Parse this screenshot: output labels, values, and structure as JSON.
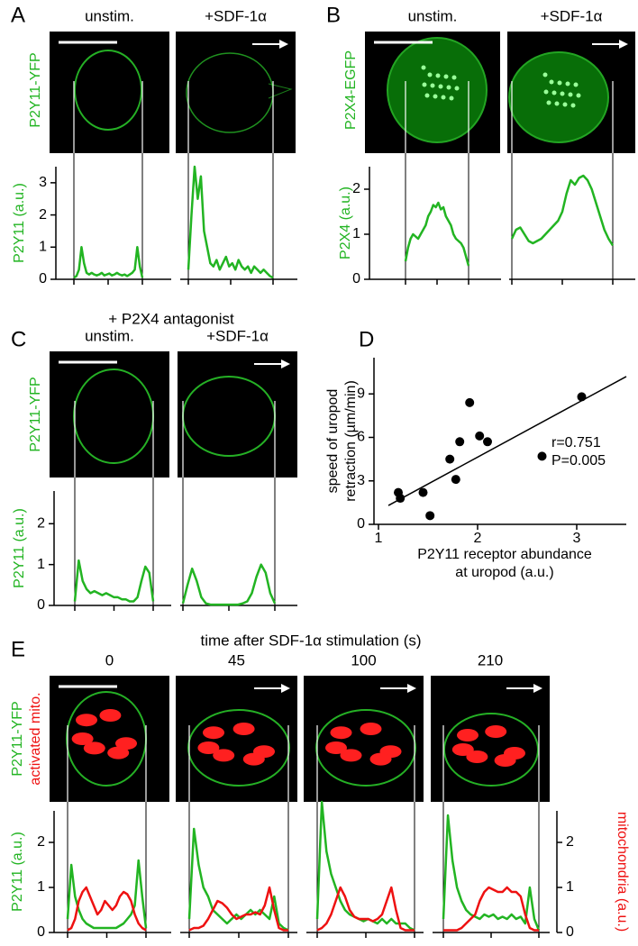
{
  "panel_letters": [
    "A",
    "B",
    "C",
    "D",
    "E"
  ],
  "headers": {
    "c": "+ P2X4 antagonist",
    "e": "time after SDF-1α stimulation (s)"
  },
  "image_labels": [
    "P2Y11-YFP",
    "P2X4-EGFP",
    "P2Y11-YFP",
    "P2Y11-YFP",
    "activated mito."
  ],
  "chart_data": [
    {
      "type": "line",
      "title": "unstim.",
      "ylabel": "P2Y11 (a.u.)",
      "ylim": [
        0,
        3.5
      ],
      "yticks": [
        0,
        1,
        2,
        3
      ],
      "series": [
        {
          "color": "#22b422",
          "values": [
            0.05,
            0.1,
            0.3,
            1.0,
            0.5,
            0.2,
            0.15,
            0.2,
            0.15,
            0.12,
            0.15,
            0.2,
            0.12,
            0.15,
            0.18,
            0.12,
            0.15,
            0.2,
            0.15,
            0.12,
            0.15,
            0.1,
            0.15,
            0.2,
            0.3,
            1.0,
            0.4,
            0.05
          ]
        }
      ]
    },
    {
      "type": "line",
      "title": "+SDF-1α",
      "ylim": [
        0,
        3.5
      ],
      "series": [
        {
          "color": "#22b422",
          "values": [
            0.3,
            2.0,
            3.5,
            2.5,
            3.2,
            1.5,
            1.0,
            0.5,
            0.4,
            0.6,
            0.3,
            0.5,
            0.7,
            0.4,
            0.5,
            0.3,
            0.6,
            0.4,
            0.3,
            0.4,
            0.2,
            0.4,
            0.3,
            0.2,
            0.3,
            0.2,
            0.1,
            0.05
          ]
        }
      ]
    },
    {
      "type": "line",
      "title": "unstim.",
      "ylabel": "P2X4 (a.u.)",
      "ylim": [
        0,
        2.5
      ],
      "yticks": [
        0,
        1,
        2
      ],
      "series": [
        {
          "color": "#22b422",
          "values": [
            0.4,
            0.7,
            0.9,
            1.0,
            0.95,
            0.9,
            1.0,
            1.1,
            1.2,
            1.4,
            1.5,
            1.65,
            1.6,
            1.7,
            1.55,
            1.6,
            1.4,
            1.3,
            1.2,
            1.0,
            0.9,
            0.85,
            0.8,
            0.7,
            0.5,
            0.3
          ]
        }
      ]
    },
    {
      "type": "line",
      "title": "+SDF-1α",
      "ylim": [
        0,
        2.5
      ],
      "series": [
        {
          "color": "#22b422",
          "values": [
            0.9,
            1.1,
            1.15,
            1.0,
            0.85,
            0.8,
            0.85,
            0.9,
            1.0,
            1.1,
            1.2,
            1.3,
            1.5,
            1.9,
            2.2,
            2.1,
            2.25,
            2.3,
            2.2,
            2.0,
            1.7,
            1.4,
            1.1,
            0.9,
            0.75
          ]
        }
      ]
    },
    {
      "type": "line",
      "title": "unstim.",
      "ylabel": "P2Y11 (a.u.)",
      "ylim": [
        0,
        2.8
      ],
      "yticks": [
        0,
        1,
        2
      ],
      "series": [
        {
          "color": "#22b422",
          "values": [
            0.1,
            1.1,
            0.6,
            0.4,
            0.3,
            0.35,
            0.3,
            0.25,
            0.3,
            0.25,
            0.2,
            0.2,
            0.15,
            0.15,
            0.1,
            0.1,
            0.2,
            0.6,
            0.95,
            0.8,
            0.1
          ]
        }
      ]
    },
    {
      "type": "line",
      "title": "+SDF-1α",
      "ylim": [
        0,
        2.8
      ],
      "series": [
        {
          "color": "#22b422",
          "values": [
            0.05,
            0.5,
            0.9,
            0.6,
            0.2,
            0.05,
            0.02,
            0.02,
            0.02,
            0.02,
            0.02,
            0.02,
            0.02,
            0.05,
            0.1,
            0.3,
            0.7,
            1.0,
            0.8,
            0.3,
            0.05
          ]
        }
      ]
    },
    {
      "type": "scatter",
      "xlabel": [
        "P2Y11 receptor abundance",
        "at uropod (a.u.)"
      ],
      "ylabel": [
        "speed of uropod",
        "retraction (µm/min)"
      ],
      "xlim": [
        1,
        3.5
      ],
      "xticks": [
        1,
        2,
        3
      ],
      "ylim": [
        0,
        11.5
      ],
      "yticks": [
        0,
        3,
        6,
        9
      ],
      "x": [
        1.2,
        1.22,
        1.45,
        1.52,
        1.72,
        1.78,
        1.82,
        1.92,
        2.02,
        2.1,
        2.65,
        3.05
      ],
      "y": [
        2.2,
        1.8,
        2.2,
        0.6,
        4.5,
        3.1,
        5.7,
        8.4,
        6.1,
        5.7,
        4.7,
        8.8
      ],
      "fit": {
        "x": [
          1.1,
          3.5
        ],
        "y": [
          1.3,
          10.2
        ]
      },
      "annotations": [
        "r=0.751",
        "P=0.005"
      ]
    },
    {
      "type": "line",
      "title": "0",
      "ylabel": "P2Y11 (a.u.)",
      "ylim": [
        0,
        2.7
      ],
      "yticks": [
        0,
        1,
        2
      ],
      "y2lim": [
        0,
        2.7
      ],
      "series": [
        {
          "color": "#22b422",
          "values": [
            0.3,
            1.5,
            0.8,
            0.5,
            0.3,
            0.2,
            0.15,
            0.1,
            0.1,
            0.1,
            0.1,
            0.1,
            0.1,
            0.1,
            0.15,
            0.2,
            0.3,
            0.4,
            0.6,
            1.6,
            0.8,
            0.1
          ]
        },
        {
          "color": "#ee1111",
          "axis": "y2",
          "values": [
            0.05,
            0.1,
            0.3,
            0.7,
            0.9,
            1.0,
            0.8,
            0.6,
            0.4,
            0.5,
            0.7,
            0.6,
            0.5,
            0.6,
            0.8,
            0.9,
            0.85,
            0.7,
            0.4,
            0.2,
            0.1,
            0.05
          ]
        }
      ]
    },
    {
      "type": "line",
      "title": "45",
      "ylim": [
        0,
        2.7
      ],
      "y2lim": [
        0,
        2.7
      ],
      "series": [
        {
          "color": "#22b422",
          "values": [
            0.3,
            2.3,
            1.5,
            1.0,
            0.8,
            0.5,
            0.4,
            0.3,
            0.2,
            0.3,
            0.4,
            0.3,
            0.4,
            0.5,
            0.4,
            0.5,
            0.4,
            0.3,
            0.8,
            0.2,
            0.1,
            0.05
          ]
        },
        {
          "color": "#ee1111",
          "axis": "y2",
          "values": [
            0.05,
            0.1,
            0.1,
            0.15,
            0.3,
            0.5,
            0.7,
            0.65,
            0.55,
            0.4,
            0.3,
            0.35,
            0.4,
            0.4,
            0.45,
            0.4,
            0.6,
            1.0,
            0.5,
            0.1,
            0.05,
            0.05
          ]
        }
      ]
    },
    {
      "type": "line",
      "title": "100",
      "ylim": [
        0,
        2.7
      ],
      "y2lim": [
        0,
        2.7
      ],
      "series": [
        {
          "color": "#22b422",
          "values": [
            0.3,
            2.9,
            1.8,
            1.3,
            1.0,
            0.7,
            0.5,
            0.4,
            0.35,
            0.3,
            0.25,
            0.3,
            0.25,
            0.2,
            0.3,
            0.2,
            0.3,
            0.2,
            0.2,
            0.2,
            0.1,
            0.05
          ]
        },
        {
          "color": "#ee1111",
          "axis": "y2",
          "values": [
            0.05,
            0.1,
            0.2,
            0.4,
            0.7,
            1.0,
            0.8,
            0.5,
            0.35,
            0.3,
            0.3,
            0.3,
            0.25,
            0.3,
            0.4,
            0.7,
            1.0,
            0.5,
            0.1,
            0.05,
            0.05,
            0.05
          ]
        }
      ]
    },
    {
      "type": "line",
      "title": "210",
      "y2label": "mitochondria (a.u.)",
      "ylim": [
        0,
        2.7
      ],
      "y2lim": [
        0,
        2.7
      ],
      "y2ticks": [
        0,
        1,
        2
      ],
      "series": [
        {
          "color": "#22b422",
          "values": [
            0.3,
            2.6,
            1.6,
            1.0,
            0.7,
            0.5,
            0.4,
            0.35,
            0.3,
            0.4,
            0.35,
            0.4,
            0.3,
            0.35,
            0.3,
            0.4,
            0.3,
            0.35,
            0.2,
            1.0,
            0.3,
            0.05
          ]
        },
        {
          "color": "#ee1111",
          "axis": "y2",
          "values": [
            0.05,
            0.05,
            0.05,
            0.05,
            0.1,
            0.2,
            0.3,
            0.4,
            0.7,
            0.9,
            1.0,
            0.95,
            0.9,
            0.9,
            1.0,
            0.9,
            0.9,
            0.8,
            0.4,
            0.1,
            0.05,
            0.05
          ]
        }
      ]
    }
  ]
}
